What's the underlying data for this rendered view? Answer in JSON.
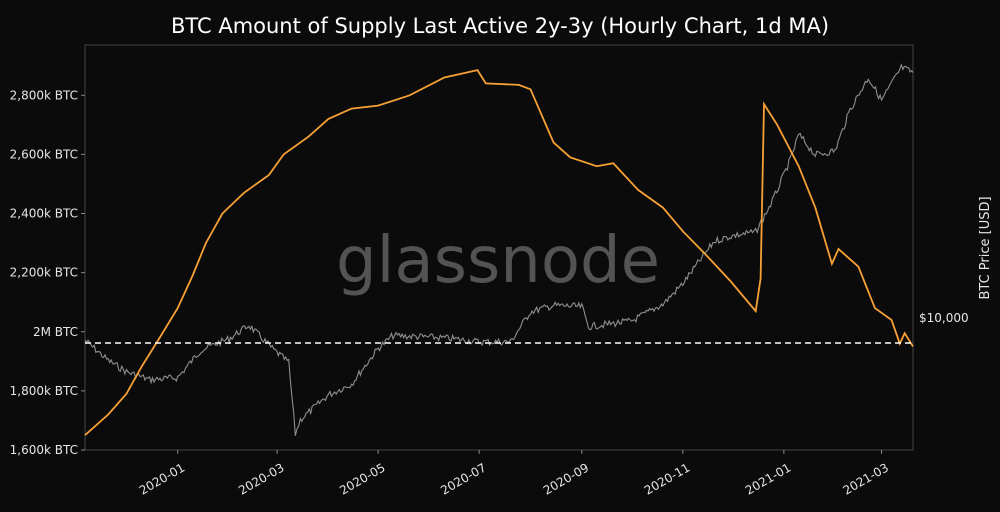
{
  "chart_data": {
    "type": "line",
    "title": "BTC Amount of Supply Last Active 2y-3y (Hourly Chart, 1d MA)",
    "ylabel_right": "BTC Price [USD]",
    "watermark": "glassnode",
    "reference_line": {
      "label": "$10,000",
      "value_usd": 10000,
      "style": "dashed",
      "color": "#ffffff"
    },
    "x_axis": {
      "type": "date",
      "range": [
        "2019-11-06",
        "2021-03-20"
      ],
      "ticks": [
        "2020-01-01",
        "2020-03-01",
        "2020-05-01",
        "2020-07-01",
        "2020-09-01",
        "2020-11-01",
        "2021-01-01",
        "2021-03-01"
      ],
      "tick_labels": [
        "2020-01",
        "2020-03",
        "2020-05",
        "2020-07",
        "2020-09",
        "2020-11",
        "2021-01",
        "2021-03"
      ]
    },
    "y_axis_left": {
      "unit": "BTC",
      "range": [
        1600000,
        2970000
      ],
      "ticks": [
        1600000,
        1800000,
        2000000,
        2200000,
        2400000,
        2600000,
        2800000
      ],
      "tick_labels": [
        "1,600k BTC",
        "1,800k BTC",
        "2M BTC",
        "2,200k BTC",
        "2,400k BTC",
        "2,600k BTC",
        "2,800k BTC"
      ]
    },
    "y_axis_right": {
      "unit": "USD",
      "scale": "log"
    },
    "grid": false,
    "series": [
      {
        "color": "#f7a035",
        "axis": "left",
        "points": [
          [
            "2019-11-06",
            1650000
          ],
          [
            "2019-11-20",
            1720000
          ],
          [
            "2019-12-01",
            1790000
          ],
          [
            "2019-12-10",
            1880000
          ],
          [
            "2019-12-20",
            1970000
          ],
          [
            "2020-01-01",
            2080000
          ],
          [
            "2020-01-10",
            2190000
          ],
          [
            "2020-01-18",
            2300000
          ],
          [
            "2020-01-28",
            2400000
          ],
          [
            "2020-02-10",
            2470000
          ],
          [
            "2020-02-25",
            2530000
          ],
          [
            "2020-03-05",
            2600000
          ],
          [
            "2020-03-20",
            2660000
          ],
          [
            "2020-04-01",
            2720000
          ],
          [
            "2020-04-15",
            2755000
          ],
          [
            "2020-05-01",
            2765000
          ],
          [
            "2020-05-20",
            2800000
          ],
          [
            "2020-06-10",
            2860000
          ],
          [
            "2020-06-30",
            2885000
          ],
          [
            "2020-07-05",
            2840000
          ],
          [
            "2020-07-25",
            2835000
          ],
          [
            "2020-08-01",
            2820000
          ],
          [
            "2020-08-15",
            2640000
          ],
          [
            "2020-08-25",
            2590000
          ],
          [
            "2020-09-10",
            2560000
          ],
          [
            "2020-09-20",
            2570000
          ],
          [
            "2020-10-05",
            2480000
          ],
          [
            "2020-10-20",
            2420000
          ],
          [
            "2020-11-01",
            2340000
          ],
          [
            "2020-11-15",
            2260000
          ],
          [
            "2020-11-30",
            2170000
          ],
          [
            "2020-12-15",
            2070000
          ],
          [
            "2020-12-18",
            2180000
          ],
          [
            "2020-12-20",
            2770000
          ],
          [
            "2020-12-28",
            2700000
          ],
          [
            "2021-01-10",
            2560000
          ],
          [
            "2021-01-20",
            2420000
          ],
          [
            "2021-01-30",
            2230000
          ],
          [
            "2021-02-03",
            2280000
          ],
          [
            "2021-02-15",
            2220000
          ],
          [
            "2021-02-25",
            2080000
          ],
          [
            "2021-03-07",
            2040000
          ],
          [
            "2021-03-12",
            1960000
          ],
          [
            "2021-03-15",
            1995000
          ],
          [
            "2021-03-20",
            1950000
          ]
        ]
      },
      {
        "name": "BTC Price [USD]",
        "color": "#8f8f8f",
        "axis": "right",
        "points": [
          [
            "2019-11-06",
            9300
          ],
          [
            "2019-11-20",
            8100
          ],
          [
            "2019-12-01",
            7500
          ],
          [
            "2019-12-15",
            7100
          ],
          [
            "2020-01-01",
            7200
          ],
          [
            "2020-01-15",
            8700
          ],
          [
            "2020-02-01",
            9400
          ],
          [
            "2020-02-13",
            10300
          ],
          [
            "2020-02-28",
            8700
          ],
          [
            "2020-03-08",
            8000
          ],
          [
            "2020-03-12",
            4900
          ],
          [
            "2020-03-15",
            5400
          ],
          [
            "2020-04-01",
            6400
          ],
          [
            "2020-04-15",
            6900
          ],
          [
            "2020-05-01",
            8800
          ],
          [
            "2020-05-10",
            9600
          ],
          [
            "2020-06-01",
            9500
          ],
          [
            "2020-06-15",
            9400
          ],
          [
            "2020-07-01",
            9200
          ],
          [
            "2020-07-20",
            9200
          ],
          [
            "2020-08-01",
            11300
          ],
          [
            "2020-08-15",
            11800
          ],
          [
            "2020-09-01",
            11700
          ],
          [
            "2020-09-05",
            10200
          ],
          [
            "2020-10-01",
            10600
          ],
          [
            "2020-10-20",
            11900
          ],
          [
            "2020-11-01",
            13700
          ],
          [
            "2020-11-20",
            18300
          ],
          [
            "2020-12-01",
            19000
          ],
          [
            "2020-12-15",
            19500
          ],
          [
            "2020-12-25",
            24000
          ],
          [
            "2021-01-05",
            32000
          ],
          [
            "2021-01-10",
            38000
          ],
          [
            "2021-01-20",
            33000
          ],
          [
            "2021-02-01",
            34000
          ],
          [
            "2021-02-10",
            45000
          ],
          [
            "2021-02-21",
            56000
          ],
          [
            "2021-03-01",
            48000
          ],
          [
            "2021-03-13",
            60000
          ],
          [
            "2021-03-20",
            58000
          ]
        ]
      }
    ]
  }
}
